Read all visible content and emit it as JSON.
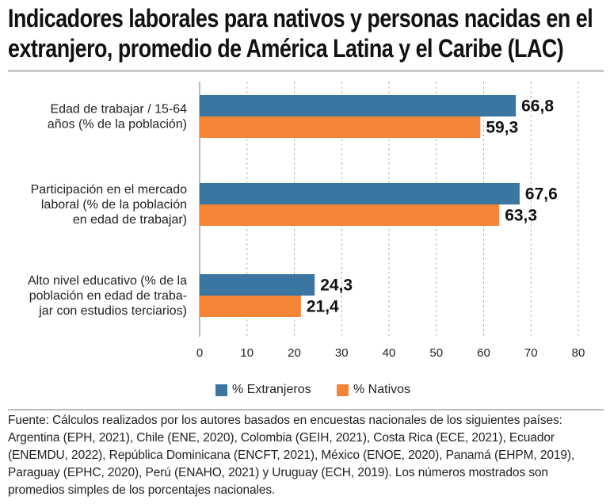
{
  "title": "Indicadores laborales para nativos y personas nacidas en el extranjero, promedio de América Latina y el Caribe (LAC)",
  "chart_data": {
    "type": "bar",
    "orientation": "horizontal",
    "categories": [
      [
        "Edad de trabajar / 15-64",
        "años (% de la población)"
      ],
      [
        "Participación en el mercado",
        "laboral (% de la población",
        "en edad de trabajar)"
      ],
      [
        "Alto nivel educativo (% de la",
        "población en edad de traba-",
        "jar con estudios terciarios)"
      ]
    ],
    "series": [
      {
        "name": "% Extranjeros",
        "color": "#3a76a0",
        "values": [
          66.8,
          67.6,
          24.3
        ],
        "labels": [
          "66,8",
          "67,6",
          "24,3"
        ]
      },
      {
        "name": "% Nativos",
        "color": "#f58536",
        "values": [
          59.3,
          63.3,
          21.4
        ],
        "labels": [
          "59,3",
          "63,3",
          "21,4"
        ]
      }
    ],
    "xlim": [
      0,
      80
    ],
    "xticks": [
      0,
      10,
      20,
      30,
      40,
      50,
      60,
      70,
      80
    ],
    "grid": true,
    "legend_position": "bottom"
  },
  "source": "Fuente: Cálculos realizados por los autores basados en encuestas nacionales de los siguientes países: Argentina (EPH, 2021), Chile (ENE, 2020), Colombia (GEIH, 2021), Costa Rica (ECE, 2021), Ecuador (ENEMDU, 2022), República Dominicana (ENCFT, 2021), México (ENOE, 2020), Panamá (EHPM, 2019), Paraguay (EPHC, 2020), Perú (ENAHO, 2021) y Uruguay (ECH, 2019). Los números mostrados son promedios simples de los porcentajes nacionales."
}
